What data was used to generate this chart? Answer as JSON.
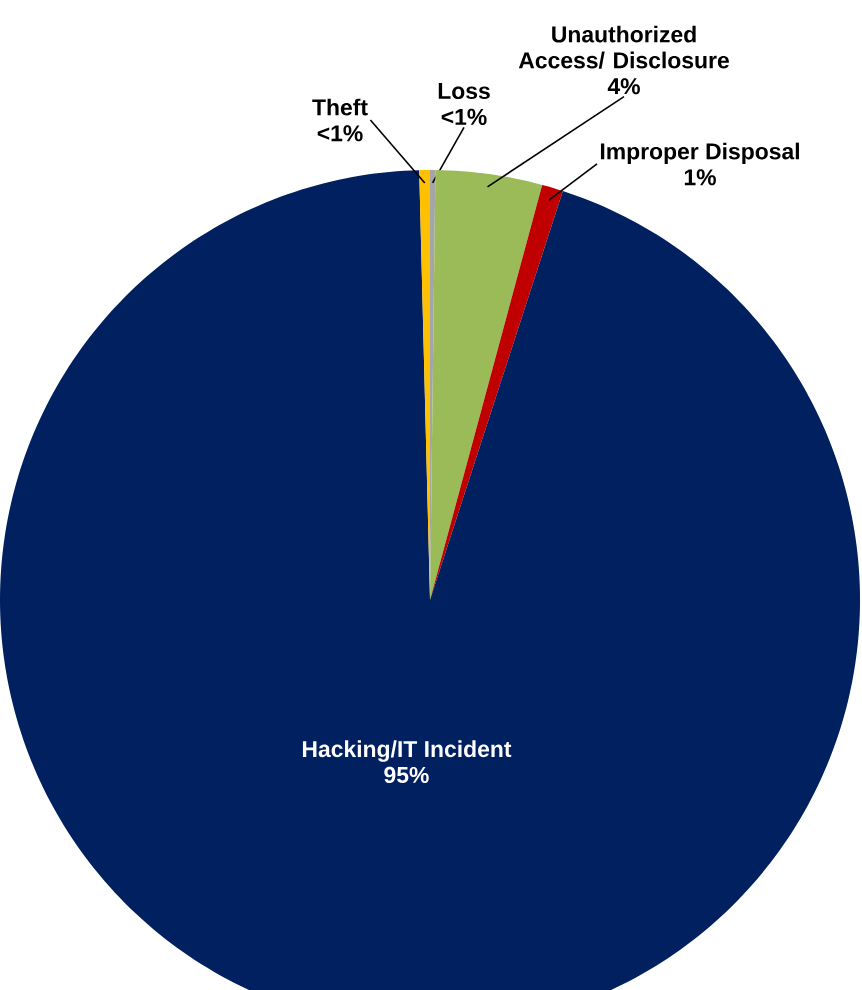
{
  "chart_data": {
    "type": "pie",
    "categories": [
      "Loss",
      "Unauthorized Access/ Disclosure",
      "Improper Disposal",
      "Hacking/IT Incident",
      "Theft"
    ],
    "values": [
      0.2,
      4.0,
      0.8,
      94.6,
      0.4
    ],
    "colors": [
      "#a5a5a5",
      "#9bbb59",
      "#c00000",
      "#002060",
      "#ffc000"
    ],
    "value_labels": [
      "<1%",
      "4%",
      "1%",
      "95%",
      "<1%"
    ]
  }
}
